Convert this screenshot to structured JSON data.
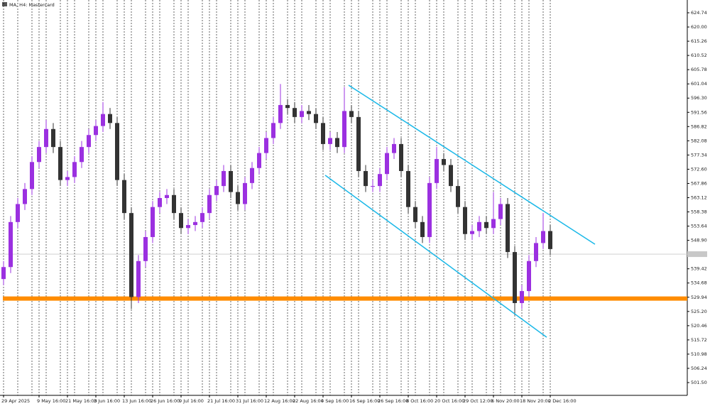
{
  "chart_data": {
    "type": "candlestick",
    "title": "MA, H4: Mastercard",
    "categories": [
      "29 Apr 2025",
      null,
      null,
      null,
      null,
      "9 May 16:00",
      null,
      null,
      null,
      "21 May 16:00",
      null,
      null,
      null,
      "3 Jun 16:00",
      null,
      null,
      null,
      "13 Jun 16:00",
      null,
      null,
      null,
      "26 Jun 16:00",
      null,
      null,
      null,
      "9 Jul 16:00",
      null,
      null,
      null,
      "21 Jul 16:00",
      null,
      null,
      null,
      "31 Jul 16:00",
      null,
      null,
      null,
      "12 Aug 16:00",
      null,
      null,
      null,
      "22 Aug 16:00",
      null,
      null,
      null,
      "4 Sep 16:00",
      null,
      null,
      null,
      "16 Sep 16:00",
      null,
      null,
      null,
      "26 Sep 16:00",
      null,
      null,
      null,
      "8 Oct 16:00",
      null,
      null,
      null,
      "20 Oct 16:00",
      null,
      null,
      null,
      "29 Oct 12:00",
      null,
      null,
      null,
      "6 Nov 20:00",
      null,
      null,
      null,
      "18 Nov 20:00",
      null,
      null,
      null,
      "2 Dec 16:00"
    ],
    "open": [
      536,
      540,
      555,
      561,
      566,
      575,
      580,
      586,
      580,
      569,
      570,
      575,
      580,
      584,
      587,
      591,
      588,
      569,
      558,
      530,
      542,
      550,
      560,
      563,
      564,
      558,
      553,
      554,
      555,
      558,
      564,
      567,
      572,
      565,
      561,
      568,
      573,
      578,
      583,
      588,
      594,
      593,
      590,
      592,
      591,
      588,
      581,
      583,
      580,
      592,
      590,
      572,
      567,
      567,
      571,
      578,
      581,
      572,
      560,
      555,
      550,
      568,
      576,
      574,
      567,
      560,
      551,
      552,
      555,
      553,
      556,
      561,
      545,
      528,
      532,
      542,
      548,
      552
    ],
    "high": [
      542,
      557,
      563,
      568,
      577,
      582,
      589,
      588,
      582,
      572,
      577,
      582,
      586,
      589,
      595,
      593,
      590,
      571,
      560,
      544,
      552,
      562,
      565,
      566,
      566,
      560,
      556,
      557,
      560,
      566,
      569,
      574,
      574,
      567,
      570,
      575,
      580,
      585,
      590,
      601,
      596,
      595,
      594,
      594,
      593,
      590,
      585,
      585,
      600,
      594,
      592,
      574,
      569,
      573,
      580,
      583,
      583,
      574,
      562,
      557,
      570,
      580,
      578,
      576,
      569,
      562,
      554,
      557,
      557,
      565,
      563,
      563,
      547,
      534,
      544,
      550,
      558,
      554
    ],
    "low": [
      534,
      538,
      553,
      559,
      564,
      573,
      578,
      578,
      567,
      567,
      568,
      573,
      578,
      582,
      585,
      586,
      567,
      556,
      526,
      528,
      540,
      548,
      558,
      561,
      556,
      551,
      551,
      552,
      553,
      556,
      562,
      565,
      563,
      559,
      559,
      566,
      571,
      576,
      581,
      586,
      591,
      588,
      588,
      589,
      586,
      579,
      579,
      578,
      578,
      588,
      570,
      565,
      565,
      565,
      569,
      576,
      570,
      558,
      553,
      548,
      548,
      566,
      572,
      565,
      558,
      549,
      549,
      550,
      551,
      551,
      554,
      543,
      524,
      526,
      530,
      540,
      546,
      544
    ],
    "close": [
      540,
      555,
      561,
      566,
      575,
      580,
      586,
      580,
      569,
      570,
      575,
      580,
      584,
      587,
      591,
      588,
      569,
      558,
      530,
      542,
      550,
      560,
      563,
      564,
      558,
      553,
      554,
      555,
      558,
      564,
      567,
      572,
      565,
      561,
      568,
      573,
      578,
      583,
      588,
      594,
      593,
      590,
      592,
      591,
      588,
      581,
      583,
      580,
      592,
      590,
      572,
      567,
      567,
      571,
      578,
      581,
      572,
      560,
      555,
      550,
      568,
      576,
      574,
      567,
      560,
      551,
      552,
      555,
      553,
      556,
      561,
      545,
      528,
      532,
      542,
      548,
      552,
      546
    ],
    "up_color": "#9b30e0",
    "down_color": "#333333",
    "ylim": [
      497.24,
      629.0
    ],
    "yticks": [
      624.74,
      {
        "value": 620,
        "label": "620.00"
      },
      615.26,
      610.52,
      605.78,
      601.04,
      {
        "value": 596.3,
        "label": "596.30"
      },
      591.56,
      586.82,
      582.08,
      577.34,
      {
        "value": 572.6,
        "label": "572.60"
      },
      567.86,
      563.12,
      558.38,
      553.64,
      {
        "value": 548.9,
        "label": "548.90"
      },
      539.42,
      534.68,
      529.94,
      {
        "value": 525.2,
        "label": "525.20"
      },
      520.46,
      515.72,
      510.98,
      506.24,
      {
        "value": 501.5,
        "label": "501.50"
      }
    ],
    "hline": {
      "value": 529.5,
      "color": "#ff8c00"
    },
    "price_line": 544.3,
    "trendlines": [
      {
        "x": [
          48.6,
          83.3
        ],
        "y": [
          600.6,
          547.6
        ],
        "color": "#1ab8e8"
      },
      {
        "x": [
          45.3,
          76.5
        ],
        "y": [
          570.6,
          516.6
        ],
        "color": "#1ab8e8"
      }
    ]
  }
}
